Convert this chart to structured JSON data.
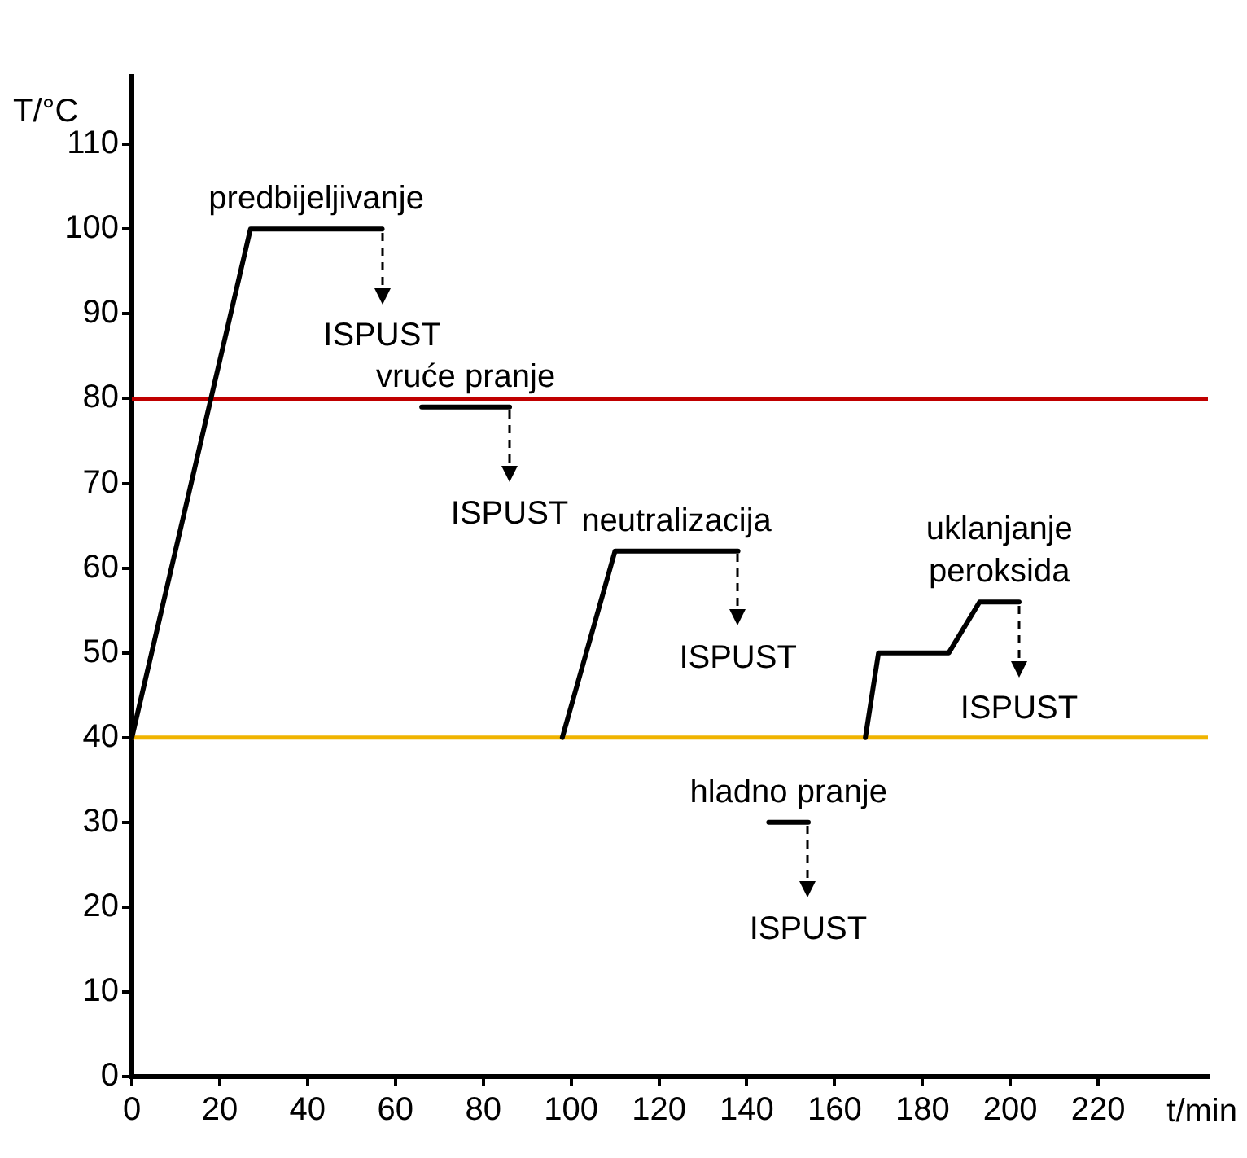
{
  "chart_data": {
    "type": "line",
    "xlabel": "t/min",
    "ylabel": "T/°C",
    "xlim": [
      0,
      245
    ],
    "ylim": [
      0,
      118
    ],
    "xticks": [
      0,
      20,
      40,
      60,
      80,
      100,
      120,
      140,
      160,
      180,
      200,
      220
    ],
    "yticks": [
      0,
      10,
      20,
      30,
      40,
      50,
      60,
      70,
      80,
      90,
      100,
      110
    ],
    "grid": false,
    "legend": false,
    "marker": "none",
    "series": [
      {
        "color": "#000000",
        "x": [
          0,
          27,
          57
        ],
        "values": [
          40,
          100,
          100
        ]
      },
      {
        "color": "#000000",
        "x": [
          66,
          86
        ],
        "values": [
          79,
          79
        ]
      },
      {
        "color": "#000000",
        "x": [
          98,
          110,
          138
        ],
        "values": [
          40,
          62,
          62
        ]
      },
      {
        "color": "#000000",
        "x": [
          167,
          170,
          186,
          193,
          202
        ],
        "values": [
          40,
          50,
          50,
          56,
          56
        ]
      },
      {
        "color": "#000000",
        "x": [
          145,
          154
        ],
        "values": [
          30,
          30
        ]
      }
    ],
    "ref_lines": [
      {
        "axis": "y",
        "value": 80,
        "color": "#c00000"
      },
      {
        "axis": "y",
        "value": 40,
        "color": "#f0b400"
      }
    ],
    "annotations": [
      {
        "text": "predbijeljivanje",
        "x": 42,
        "y": 100
      },
      {
        "text": "ISPUST",
        "x": 57,
        "y": 100
      },
      {
        "text": "vruće pranje",
        "x": 76,
        "y": 79
      },
      {
        "text": "ISPUST",
        "x": 86,
        "y": 79
      },
      {
        "text": "neutralizacija",
        "x": 124,
        "y": 62
      },
      {
        "text": "ISPUST",
        "x": 138,
        "y": 62
      },
      {
        "text": "uklanjanje\nperoksida",
        "x": 197.5,
        "y": 56
      },
      {
        "text": "ISPUST",
        "x": 202,
        "y": 56
      },
      {
        "text": "hladno pranje",
        "x": 149.5,
        "y": 30
      },
      {
        "text": "ISPUST",
        "x": 154,
        "y": 30
      }
    ]
  }
}
